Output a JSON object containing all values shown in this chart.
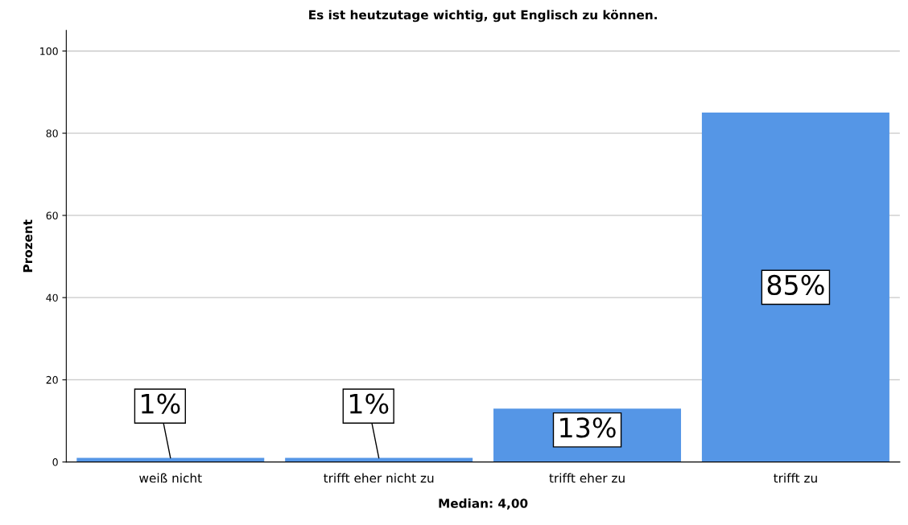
{
  "chart_data": {
    "type": "bar",
    "title": "Es ist heutzutage wichtig, gut Englisch zu können.",
    "xlabel": "Median: 4,00",
    "ylabel": "Prozent",
    "categories": [
      "weiß nicht",
      "trifft eher nicht zu",
      "trifft eher zu",
      "trifft zu"
    ],
    "values": [
      1,
      1,
      13,
      85
    ],
    "value_labels": [
      "1%",
      "1%",
      "13%",
      "85%"
    ],
    "color": "#5596e6",
    "ylim": [
      0,
      105
    ],
    "yticks": [
      0,
      20,
      40,
      60,
      80,
      100
    ],
    "grid": "y",
    "legend": false
  }
}
